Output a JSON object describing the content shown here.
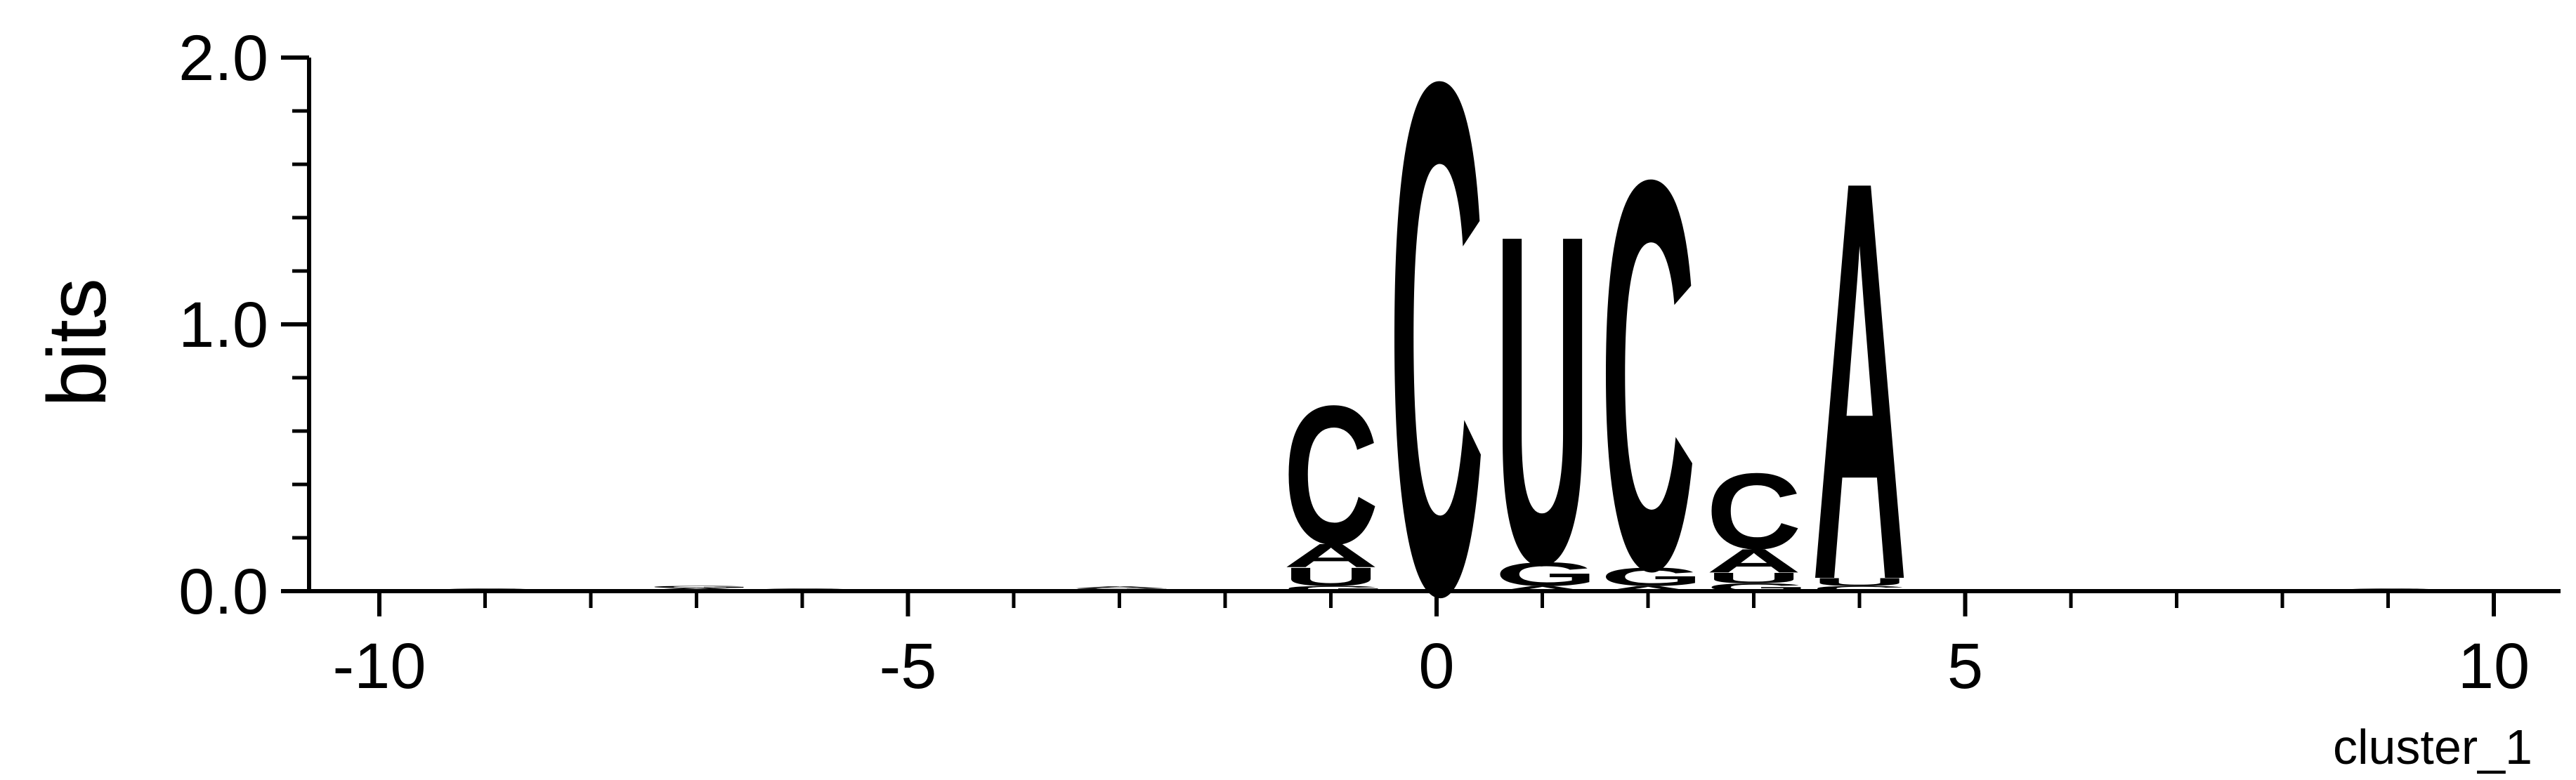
{
  "chart_data": {
    "type": "sequence_logo",
    "title": "",
    "xlabel": "",
    "ylabel": "bits",
    "corner_label": "cluster_1",
    "xlim": [
      -10.5,
      10.5
    ],
    "ylim": [
      0,
      2.0
    ],
    "x_ticks": [
      -10,
      -5,
      0,
      5,
      10
    ],
    "x_tick_labels": [
      "-10",
      "-5",
      "0",
      "5",
      "10"
    ],
    "y_ticks": [
      0,
      1,
      2
    ],
    "y_tick_labels": [
      "0.0",
      "1.0",
      "2.0"
    ],
    "colors": {
      "A": "#008000",
      "C": "#0000ff",
      "G": "#ffa500",
      "U": "#ff0000"
    },
    "positions": [
      {
        "pos": -9,
        "letters": [
          {
            "base": "C",
            "height": 0.01
          }
        ]
      },
      {
        "pos": -7,
        "letters": [
          {
            "base": "U",
            "height": 0.006
          },
          {
            "base": "A",
            "height": 0.006
          },
          {
            "base": "G",
            "height": 0.008
          }
        ]
      },
      {
        "pos": -6,
        "letters": [
          {
            "base": "C",
            "height": 0.01
          }
        ]
      },
      {
        "pos": -3,
        "letters": [
          {
            "base": "C",
            "height": 0.006
          },
          {
            "base": "G",
            "height": 0.005
          },
          {
            "base": "A",
            "height": 0.007
          }
        ]
      },
      {
        "pos": -1,
        "letters": [
          {
            "base": "G",
            "height": 0.02
          },
          {
            "base": "U",
            "height": 0.07
          },
          {
            "base": "A",
            "height": 0.09
          },
          {
            "base": "C",
            "height": 0.53
          }
        ]
      },
      {
        "pos": 0,
        "letters": [
          {
            "base": "C",
            "height": 1.96
          }
        ]
      },
      {
        "pos": 1,
        "letters": [
          {
            "base": "A",
            "height": 0.02
          },
          {
            "base": "G",
            "height": 0.09
          },
          {
            "base": "U",
            "height": 1.26
          }
        ]
      },
      {
        "pos": 2,
        "letters": [
          {
            "base": "A",
            "height": 0.02
          },
          {
            "base": "G",
            "height": 0.07
          },
          {
            "base": "C",
            "height": 1.49
          }
        ]
      },
      {
        "pos": 3,
        "letters": [
          {
            "base": "G",
            "height": 0.03
          },
          {
            "base": "U",
            "height": 0.04
          },
          {
            "base": "A",
            "height": 0.09
          },
          {
            "base": "C",
            "height": 0.29
          }
        ]
      },
      {
        "pos": 4,
        "letters": [
          {
            "base": "C",
            "height": 0.02
          },
          {
            "base": "U",
            "height": 0.03
          },
          {
            "base": "A",
            "height": 1.53
          }
        ]
      },
      {
        "pos": 9,
        "letters": [
          {
            "base": "C",
            "height": 0.01
          }
        ]
      }
    ]
  }
}
